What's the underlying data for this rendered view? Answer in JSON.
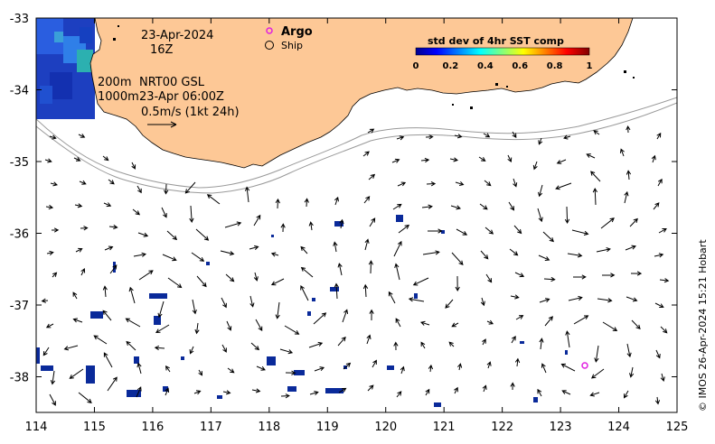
{
  "map": {
    "date": "23-Apr-2024",
    "hour": "16Z",
    "contour_label": "200m",
    "contour_label_2": "1000m",
    "product": "NRT00 GSL",
    "product_time": "23-Apr 06:00Z",
    "scale_label": "0.5m/s (1kt 24h)",
    "legend": {
      "argo": "Argo",
      "ship": "Ship"
    },
    "colorbar": {
      "title": "std dev of 4hr SST comp",
      "ticks": [
        "0",
        "0.2",
        "0.4",
        "0.6",
        "0.8",
        "1"
      ]
    },
    "x_ticks": [
      "114",
      "115",
      "116",
      "117",
      "118",
      "119",
      "120",
      "121",
      "122",
      "123",
      "124",
      "125"
    ],
    "y_ticks": [
      "-33",
      "-34",
      "-35",
      "-36",
      "-37",
      "-38"
    ],
    "credit": "© IMOS 26-Apr-2024 15:21 Hobart",
    "colors": {
      "land": "#fdc896",
      "argo": "#e020e0",
      "data_blue": "#0a2a9a",
      "contour": "#999999"
    }
  }
}
